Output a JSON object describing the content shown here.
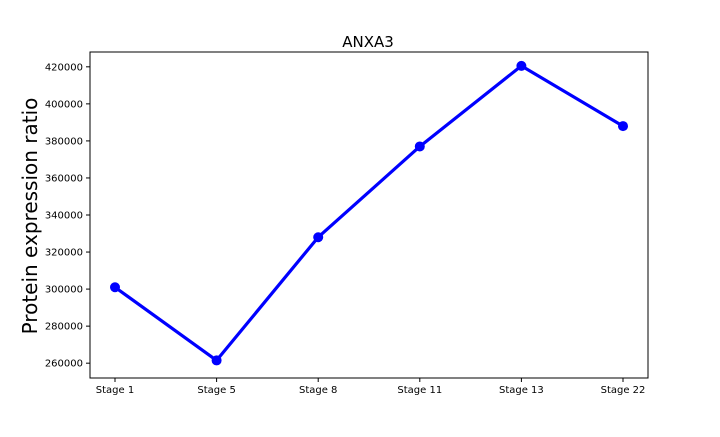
{
  "chart_data": {
    "type": "line",
    "title": "ANXA3",
    "xlabel": "",
    "ylabel": "Protein expression ratio",
    "categories": [
      "Stage 1",
      "Stage 5",
      "Stage 8",
      "Stage 11",
      "Stage 13",
      "Stage 22"
    ],
    "series": [
      {
        "values": [
          301000,
          261500,
          328000,
          377000,
          420500,
          388000
        ],
        "color": "#0000ff"
      }
    ],
    "yticks": [
      260000,
      280000,
      300000,
      320000,
      340000,
      360000,
      380000,
      400000,
      420000
    ],
    "ytick_labels": [
      "260000",
      "280000",
      "300000",
      "320000",
      "340000",
      "360000",
      "380000",
      "400000",
      "420000"
    ],
    "ylim": [
      252000,
      428000
    ],
    "grid": false,
    "legend": "none"
  }
}
